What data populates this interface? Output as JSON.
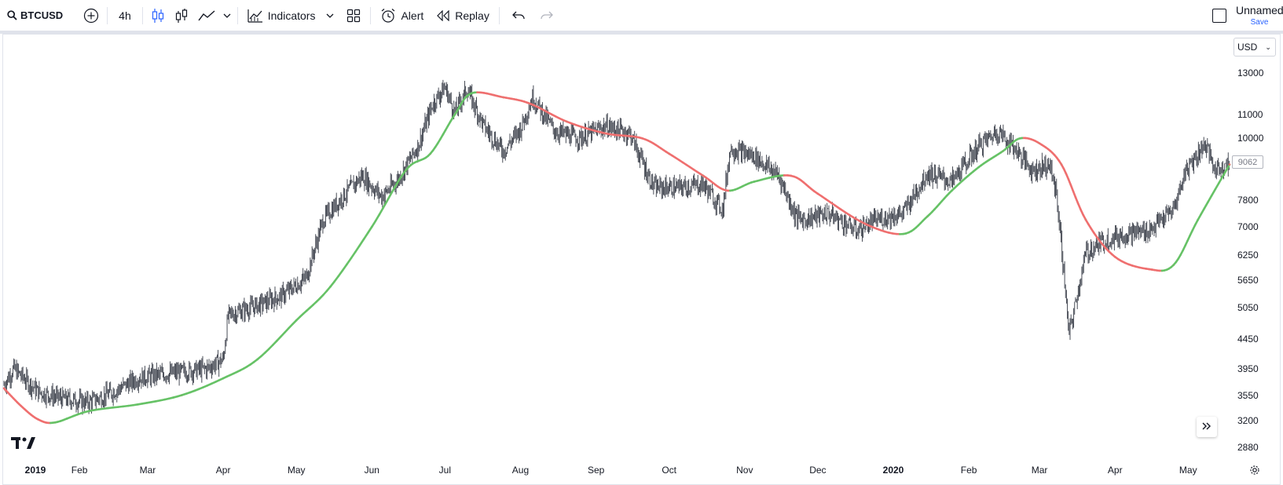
{
  "toolbar": {
    "symbol": "BTCUSD",
    "interval": "4h",
    "indicators_label": "Indicators",
    "alert_label": "Alert",
    "replay_label": "Replay",
    "layout_name": "Unnamed",
    "save_label": "Save"
  },
  "price_scale": {
    "currency": "USD",
    "labels": [
      "13000",
      "11000",
      "10000",
      "7800",
      "7000",
      "6250",
      "5650",
      "5050",
      "4450",
      "3950",
      "3550",
      "3200",
      "2880"
    ],
    "last_price": "9062"
  },
  "time_scale": {
    "labels": [
      "2019",
      "Feb",
      "Mar",
      "Apr",
      "May",
      "Jun",
      "Jul",
      "Aug",
      "Sep",
      "Oct",
      "Nov",
      "Dec",
      "2020",
      "Feb",
      "Mar",
      "Apr",
      "May"
    ]
  },
  "chart_data": {
    "type": "line",
    "symbol": "BTCUSD",
    "interval": "4h",
    "log_scale": true,
    "colors": {
      "candle": "#363a45",
      "ma_up": "#66c266",
      "ma_down": "#ef6f6f"
    },
    "price_series": {
      "x": [
        "2019-01-01",
        "2019-01-05",
        "2019-01-15",
        "2019-01-25",
        "2019-02-05",
        "2019-02-15",
        "2019-02-25",
        "2019-03-05",
        "2019-03-15",
        "2019-03-25",
        "2019-04-01",
        "2019-04-03",
        "2019-04-15",
        "2019-04-25",
        "2019-05-05",
        "2019-05-12",
        "2019-05-20",
        "2019-05-28",
        "2019-06-05",
        "2019-06-12",
        "2019-06-20",
        "2019-06-26",
        "2019-07-01",
        "2019-07-05",
        "2019-07-10",
        "2019-07-17",
        "2019-07-25",
        "2019-08-01",
        "2019-08-06",
        "2019-08-15",
        "2019-08-25",
        "2019-09-05",
        "2019-09-15",
        "2019-09-23",
        "2019-09-25",
        "2019-10-05",
        "2019-10-15",
        "2019-10-23",
        "2019-10-26",
        "2019-11-05",
        "2019-11-15",
        "2019-11-22",
        "2019-11-25",
        "2019-12-05",
        "2019-12-17",
        "2019-12-25",
        "2020-01-05",
        "2020-01-15",
        "2020-01-25",
        "2020-02-05",
        "2020-02-13",
        "2020-02-20",
        "2020-02-27",
        "2020-03-05",
        "2020-03-08",
        "2020-03-12",
        "2020-03-13",
        "2020-03-16",
        "2020-03-20",
        "2020-03-27",
        "2020-04-05",
        "2020-04-15",
        "2020-04-25",
        "2020-04-30",
        "2020-05-08",
        "2020-05-12",
        "2020-05-18"
      ],
      "y": [
        3700,
        3950,
        3600,
        3500,
        3450,
        3600,
        3800,
        3850,
        3900,
        3950,
        4100,
        4900,
        5100,
        5300,
        5700,
        7200,
        7900,
        8600,
        7900,
        8500,
        9700,
        11500,
        12300,
        11100,
        12200,
        10500,
        9500,
        10400,
        11800,
        10300,
        10000,
        10500,
        10200,
        8500,
        8200,
        8200,
        8300,
        7500,
        9600,
        9300,
        8600,
        7300,
        7200,
        7400,
        6900,
        7200,
        7400,
        8700,
        8400,
        9700,
        10300,
        9600,
        8800,
        9000,
        8000,
        5200,
        4500,
        5200,
        6300,
        6600,
        6800,
        6900,
        7500,
        8800,
        9800,
        8800,
        9062
      ]
    },
    "moving_average": {
      "x": [
        "2019-01-01",
        "2019-01-08",
        "2019-01-15",
        "2019-01-22",
        "2019-02-05",
        "2019-02-25",
        "2019-03-15",
        "2019-04-01",
        "2019-04-15",
        "2019-05-01",
        "2019-05-15",
        "2019-06-01",
        "2019-06-15",
        "2019-06-25",
        "2019-07-05",
        "2019-07-12",
        "2019-07-25",
        "2019-08-05",
        "2019-08-20",
        "2019-09-05",
        "2019-09-20",
        "2019-10-01",
        "2019-10-15",
        "2019-10-25",
        "2019-11-05",
        "2019-11-20",
        "2019-12-01",
        "2019-12-20",
        "2020-01-05",
        "2020-01-15",
        "2020-01-25",
        "2020-02-05",
        "2020-02-15",
        "2020-02-22",
        "2020-03-01",
        "2020-03-10",
        "2020-03-20",
        "2020-04-01",
        "2020-04-15",
        "2020-04-25",
        "2020-05-05",
        "2020-05-18"
      ],
      "y": [
        3650,
        3400,
        3220,
        3180,
        3330,
        3420,
        3550,
        3800,
        4100,
        4800,
        5500,
        7000,
        8800,
        9400,
        11000,
        12000,
        11800,
        11500,
        10700,
        10200,
        10000,
        9400,
        8600,
        8100,
        8400,
        8600,
        8000,
        7100,
        6800,
        7300,
        8100,
        8900,
        9500,
        10000,
        9800,
        9000,
        7200,
        6200,
        5900,
        6000,
        7200,
        9000
      ],
      "color_rule": "green when rising, red when falling"
    }
  }
}
